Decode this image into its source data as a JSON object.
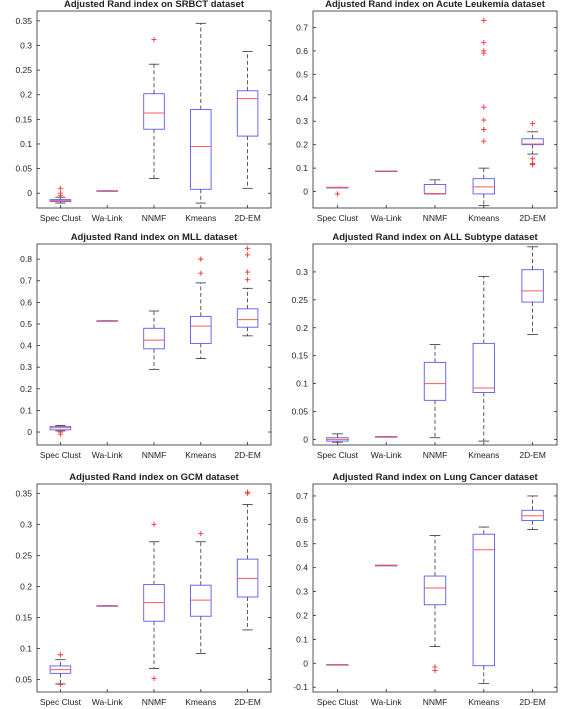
{
  "colors": {
    "box": "#5a5af0",
    "median": "#ff5a5a",
    "whisker": "#333333",
    "outlier": "#ff3030",
    "axes": "#2a2a2a"
  },
  "chart_data": [
    {
      "type": "boxplot",
      "title": "Adjusted Rand index on SRBCT dataset",
      "categories": [
        "Spec Clust",
        "Wa-Link",
        "NNMF",
        "Kmeans",
        "2D-EM"
      ],
      "ylim": [
        -0.03,
        0.37
      ],
      "yticks": [
        0,
        0.05,
        0.1,
        0.15,
        0.2,
        0.25,
        0.3,
        0.35
      ],
      "series": [
        {
          "min": -0.02,
          "q1": -0.017,
          "median": -0.015,
          "q3": -0.013,
          "max": -0.008,
          "outliers": [
            0.01,
            0.0,
            -0.005
          ]
        },
        {
          "min": 0.005,
          "q1": 0.005,
          "median": 0.005,
          "q3": 0.005,
          "max": 0.005,
          "outliers": []
        },
        {
          "min": 0.03,
          "q1": 0.13,
          "median": 0.163,
          "q3": 0.202,
          "max": 0.262,
          "outliers": [
            0.312
          ]
        },
        {
          "min": -0.02,
          "q1": 0.008,
          "median": 0.095,
          "q3": 0.17,
          "max": 0.345,
          "outliers": []
        },
        {
          "min": 0.01,
          "q1": 0.116,
          "median": 0.192,
          "q3": 0.208,
          "max": 0.288,
          "outliers": []
        }
      ]
    },
    {
      "type": "boxplot",
      "title": "Adjusted Rand index on Acute Leukemia dataset",
      "categories": [
        "Spec Clust",
        "Wa-Link",
        "NNMF",
        "Kmeans",
        "2D-EM"
      ],
      "ylim": [
        -0.07,
        0.77
      ],
      "yticks": [
        0,
        0.1,
        0.2,
        0.3,
        0.4,
        0.5,
        0.6,
        0.7
      ],
      "series": [
        {
          "min": 0.018,
          "q1": 0.018,
          "median": 0.018,
          "q3": 0.018,
          "max": 0.018,
          "outliers": [
            -0.01
          ]
        },
        {
          "min": 0.088,
          "q1": 0.088,
          "median": 0.088,
          "q3": 0.088,
          "max": 0.088,
          "outliers": []
        },
        {
          "min": -0.01,
          "q1": -0.01,
          "median": -0.008,
          "q3": 0.03,
          "max": 0.05,
          "outliers": []
        },
        {
          "min": -0.06,
          "q1": -0.01,
          "median": 0.02,
          "q3": 0.055,
          "max": 0.1,
          "outliers": [
            0.73,
            0.635,
            0.6,
            0.59,
            0.36,
            0.305,
            0.265,
            0.265,
            0.215
          ]
        },
        {
          "min": 0.16,
          "q1": 0.2,
          "median": 0.203,
          "q3": 0.225,
          "max": 0.255,
          "outliers": [
            0.29,
            0.14,
            0.12,
            0.115
          ]
        }
      ]
    },
    {
      "type": "boxplot",
      "title": "Adjusted Rand index on MLL dataset",
      "categories": [
        "Spec Clust",
        "Wa-Link",
        "NNMF",
        "Kmeans",
        "2D-EM"
      ],
      "ylim": [
        -0.06,
        0.87
      ],
      "yticks": [
        0,
        0.1,
        0.2,
        0.3,
        0.4,
        0.5,
        0.6,
        0.7,
        0.8
      ],
      "series": [
        {
          "min": 0.005,
          "q1": 0.01,
          "median": 0.02,
          "q3": 0.025,
          "max": 0.03,
          "outliers": [
            0.0,
            -0.01
          ]
        },
        {
          "min": 0.515,
          "q1": 0.515,
          "median": 0.515,
          "q3": 0.515,
          "max": 0.515,
          "outliers": []
        },
        {
          "min": 0.29,
          "q1": 0.385,
          "median": 0.425,
          "q3": 0.48,
          "max": 0.56,
          "outliers": []
        },
        {
          "min": 0.34,
          "q1": 0.41,
          "median": 0.49,
          "q3": 0.535,
          "max": 0.69,
          "outliers": [
            0.8,
            0.735
          ]
        },
        {
          "min": 0.445,
          "q1": 0.485,
          "median": 0.52,
          "q3": 0.57,
          "max": 0.665,
          "outliers": [
            0.85,
            0.82,
            0.74,
            0.705
          ]
        }
      ]
    },
    {
      "type": "boxplot",
      "title": "Adjusted Rand index on ALL Subtype dataset",
      "categories": [
        "Spec Clust",
        "Wa-Link",
        "NNMF",
        "Kmeans",
        "2D-EM"
      ],
      "ylim": [
        -0.01,
        0.35
      ],
      "yticks": [
        0,
        0.05,
        0.1,
        0.15,
        0.2,
        0.25,
        0.3
      ],
      "series": [
        {
          "min": -0.005,
          "q1": -0.003,
          "median": 0.0,
          "q3": 0.003,
          "max": 0.01,
          "outliers": []
        },
        {
          "min": 0.005,
          "q1": 0.005,
          "median": 0.005,
          "q3": 0.005,
          "max": 0.005,
          "outliers": []
        },
        {
          "min": 0.003,
          "q1": 0.07,
          "median": 0.1,
          "q3": 0.138,
          "max": 0.17,
          "outliers": []
        },
        {
          "min": -0.003,
          "q1": 0.084,
          "median": 0.092,
          "q3": 0.172,
          "max": 0.292,
          "outliers": []
        },
        {
          "min": 0.188,
          "q1": 0.246,
          "median": 0.266,
          "q3": 0.304,
          "max": 0.345,
          "outliers": []
        }
      ]
    },
    {
      "type": "boxplot",
      "title": "Adjusted Rand index on GCM dataset",
      "categories": [
        "Spec Clust",
        "Wa-Link",
        "NNMF",
        "Kmeans",
        "2D-EM"
      ],
      "ylim": [
        0.03,
        0.365
      ],
      "yticks": [
        0.05,
        0.1,
        0.15,
        0.2,
        0.25,
        0.3,
        0.35
      ],
      "series": [
        {
          "min": 0.043,
          "q1": 0.06,
          "median": 0.066,
          "q3": 0.072,
          "max": 0.082,
          "outliers": [
            0.09,
            0.042
          ]
        },
        {
          "min": 0.169,
          "q1": 0.169,
          "median": 0.169,
          "q3": 0.169,
          "max": 0.169,
          "outliers": []
        },
        {
          "min": 0.068,
          "q1": 0.144,
          "median": 0.174,
          "q3": 0.203,
          "max": 0.272,
          "outliers": [
            0.3,
            0.052
          ]
        },
        {
          "min": 0.092,
          "q1": 0.152,
          "median": 0.178,
          "q3": 0.202,
          "max": 0.272,
          "outliers": [
            0.285
          ]
        },
        {
          "min": 0.13,
          "q1": 0.183,
          "median": 0.213,
          "q3": 0.244,
          "max": 0.332,
          "outliers": [
            0.352,
            0.35
          ]
        }
      ]
    },
    {
      "type": "boxplot",
      "title": "Adjusted Rand index on Lung Cancer dataset",
      "categories": [
        "Spec Clust",
        "Wa-Link",
        "NNMF",
        "Kmeans",
        "2D-EM"
      ],
      "ylim": [
        -0.12,
        0.75
      ],
      "yticks": [
        -0.1,
        0,
        0.1,
        0.2,
        0.3,
        0.4,
        0.5,
        0.6,
        0.7
      ],
      "series": [
        {
          "min": -0.005,
          "q1": -0.005,
          "median": -0.005,
          "q3": -0.005,
          "max": -0.005,
          "outliers": []
        },
        {
          "min": 0.41,
          "q1": 0.41,
          "median": 0.41,
          "q3": 0.41,
          "max": 0.41,
          "outliers": []
        },
        {
          "min": 0.07,
          "q1": 0.245,
          "median": 0.315,
          "q3": 0.365,
          "max": 0.535,
          "outliers": [
            -0.015,
            -0.03
          ]
        },
        {
          "min": -0.085,
          "q1": -0.01,
          "median": 0.475,
          "q3": 0.54,
          "max": 0.57,
          "outliers": []
        },
        {
          "min": 0.56,
          "q1": 0.597,
          "median": 0.617,
          "q3": 0.64,
          "max": 0.7,
          "outliers": []
        }
      ]
    }
  ]
}
